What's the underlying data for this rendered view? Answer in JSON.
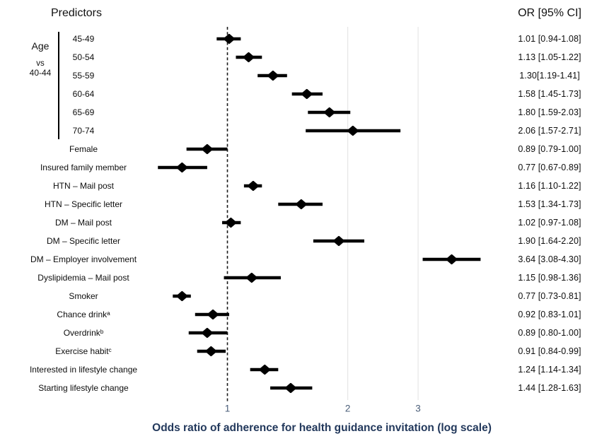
{
  "header": {
    "predictors": "Predictors",
    "or_ci": "OR [95% CI]"
  },
  "age_group": {
    "top": "Age",
    "middle": "vs",
    "bottom": "40-44"
  },
  "colors": {
    "marker": "#000000",
    "ci_line": "#000000",
    "reference_line": "#1a1a1a",
    "gridline": "#e6e6e6",
    "tick_text": "#4a5d78",
    "axis_title_text": "#23395c",
    "label_text": "#0d0d0d"
  },
  "chart_data": {
    "type": "scatter",
    "subtype": "forest-plot",
    "title": "",
    "xlabel": "Odds ratio of adherence for health guidance invitation (log scale)",
    "x_axis": {
      "scale": "log",
      "tick_values": [
        1,
        2,
        3
      ],
      "tick_labels": [
        "1",
        "2",
        "3"
      ],
      "reference_line": 1,
      "range": [
        0.62,
        4.85
      ],
      "grid": "on (at 2 and 3, light gray); dashed vertical reference at 1"
    },
    "rows": [
      {
        "label": "45-49",
        "or": 1.01,
        "ci_low": 0.94,
        "ci_high": 1.08,
        "or_text": "1.01 [0.94-1.08]"
      },
      {
        "label": "50-54",
        "or": 1.13,
        "ci_low": 1.05,
        "ci_high": 1.22,
        "or_text": "1.13 [1.05-1.22]"
      },
      {
        "label": "55-59",
        "or": 1.3,
        "ci_low": 1.19,
        "ci_high": 1.41,
        "or_text": "1.30[1.19-1.41]"
      },
      {
        "label": "60-64",
        "or": 1.58,
        "ci_low": 1.45,
        "ci_high": 1.73,
        "or_text": "1.58 [1.45-1.73]"
      },
      {
        "label": "65-69",
        "or": 1.8,
        "ci_low": 1.59,
        "ci_high": 2.03,
        "or_text": "1.80 [1.59-2.03]"
      },
      {
        "label": "70-74",
        "or": 2.06,
        "ci_low": 1.57,
        "ci_high": 2.71,
        "or_text": "2.06 [1.57-2.71]"
      },
      {
        "label": "Female",
        "or": 0.89,
        "ci_low": 0.79,
        "ci_high": 1.0,
        "or_text": "0.89 [0.79-1.00]"
      },
      {
        "label": "Insured family member",
        "or": 0.77,
        "ci_low": 0.67,
        "ci_high": 0.89,
        "or_text": "0.77 [0.67-0.89]"
      },
      {
        "label": "HTN – Mail post",
        "or": 1.16,
        "ci_low": 1.1,
        "ci_high": 1.22,
        "or_text": "1.16 [1.10-1.22]"
      },
      {
        "label": "HTN – Specific letter",
        "or": 1.53,
        "ci_low": 1.34,
        "ci_high": 1.73,
        "or_text": "1.53 [1.34-1.73]"
      },
      {
        "label": "DM – Mail post",
        "or": 1.02,
        "ci_low": 0.97,
        "ci_high": 1.08,
        "or_text": "1.02 [0.97-1.08]"
      },
      {
        "label": "DM – Specific letter",
        "or": 1.9,
        "ci_low": 1.64,
        "ci_high": 2.2,
        "or_text": "1.90 [1.64-2.20]"
      },
      {
        "label": "DM – Employer involvement",
        "or": 3.64,
        "ci_low": 3.08,
        "ci_high": 4.3,
        "or_text": "3.64 [3.08-4.30]"
      },
      {
        "label": "Dyslipidemia – Mail post",
        "or": 1.15,
        "ci_low": 0.98,
        "ci_high": 1.36,
        "or_text": "1.15 [0.98-1.36]"
      },
      {
        "label": "Smoker",
        "or": 0.77,
        "ci_low": 0.73,
        "ci_high": 0.81,
        "or_text": "0.77 [0.73-0.81]"
      },
      {
        "label": "Chance drinkᵃ",
        "or": 0.92,
        "ci_low": 0.83,
        "ci_high": 1.01,
        "or_text": "0.92 [0.83-1.01]"
      },
      {
        "label": "Overdrinkᵇ",
        "or": 0.89,
        "ci_low": 0.8,
        "ci_high": 1.0,
        "or_text": "0.89 [0.80-1.00]"
      },
      {
        "label": "Exercise habitᶜ",
        "or": 0.91,
        "ci_low": 0.84,
        "ci_high": 0.99,
        "or_text": "0.91 [0.84-0.99]"
      },
      {
        "label": "Interested in lifestyle change",
        "or": 1.24,
        "ci_low": 1.14,
        "ci_high": 1.34,
        "or_text": "1.24 [1.14-1.34]"
      },
      {
        "label": "Starting lifestyle change",
        "or": 1.44,
        "ci_low": 1.28,
        "ci_high": 1.63,
        "or_text": "1.44 [1.28-1.63]"
      }
    ]
  }
}
